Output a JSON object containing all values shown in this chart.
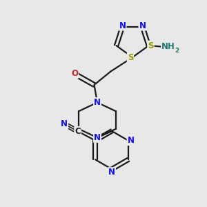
{
  "bg_color": "#e8e8e8",
  "bond_color": "#1a1a1a",
  "bond_width": 1.6,
  "atom_colors": {
    "N": "#1010ee",
    "O": "#cc2222",
    "S": "#999900",
    "C": "#1a1a1a",
    "NH2": "#227777"
  },
  "font_size": 8.5,
  "fig_size": [
    3.0,
    3.0
  ],
  "dpi": 100
}
